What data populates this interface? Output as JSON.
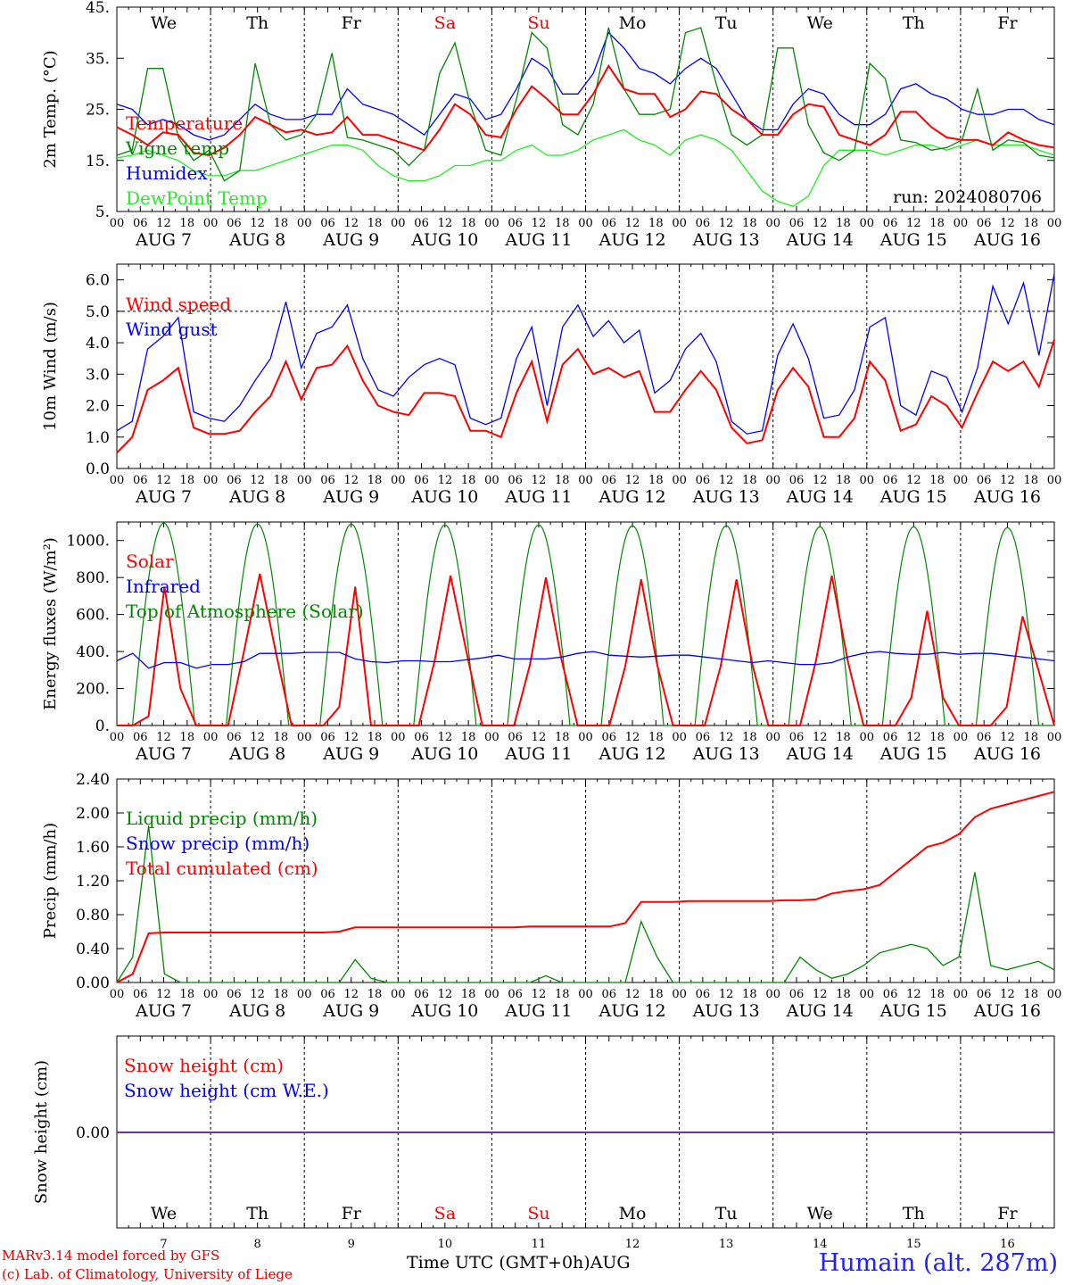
{
  "colors": {
    "red": "#ff0000",
    "green": "#008800",
    "blue": "#0000ff",
    "lightgreen": "#22ee22",
    "purple": "#7030a0",
    "weekend": "#ff0000",
    "station": "#2020ff"
  },
  "footer": {
    "credit1": "MARv3.14 model forced by GFS",
    "credit2": "(c) Lab. of Climatology, University of Liege",
    "xtitle": "Time UTC (GMT+0h)",
    "month": "AUG",
    "station": "Humain (alt. 287m)"
  },
  "chart_data": [
    {
      "type": "line",
      "ylabel": "2m Temp. (°C)",
      "ylim": [
        5,
        45
      ],
      "yticks": [
        "5.",
        "15.",
        "25.",
        "35.",
        "45."
      ],
      "annotation": "run: 2024080706",
      "days": [
        "We",
        "Th",
        "Fr",
        "Sa",
        "Su",
        "Mo",
        "Tu",
        "We",
        "Th",
        "Fr"
      ],
      "hour_labels": [
        "00",
        "06",
        "12",
        "18"
      ],
      "date_labels": [
        "AUG 7",
        "AUG 8",
        "AUG 9",
        "AUG 10",
        "AUG 11",
        "AUG 12",
        "AUG 13",
        "AUG 14",
        "AUG 15",
        "AUG 16"
      ],
      "series": [
        {
          "name": "Temperature",
          "color": "red",
          "values": [
            21.5,
            20,
            18,
            20.5,
            20,
            16.5,
            16,
            17.5,
            20,
            23.5,
            22,
            20.5,
            21,
            20,
            20.5,
            23.5,
            20,
            20,
            19,
            18,
            17,
            21,
            26,
            24,
            20,
            19.5,
            25,
            29.5,
            27,
            24,
            24,
            28,
            33.5,
            29,
            28,
            28,
            23.5,
            25,
            28.5,
            28,
            25,
            23,
            20,
            20,
            24,
            26,
            25.5,
            20,
            19,
            18,
            20,
            24.5,
            24.5,
            21.5,
            19.5,
            19,
            19,
            18,
            20.5,
            19,
            18,
            17.5
          ]
        },
        {
          "name": "Vigne temp",
          "color": "green",
          "values": [
            16,
            17,
            33,
            33,
            19.5,
            15,
            17,
            11,
            13,
            34,
            22,
            19,
            20,
            24,
            36,
            19.5,
            19,
            18,
            17,
            14,
            17,
            32,
            38,
            26,
            17,
            16,
            27,
            40,
            37,
            22,
            20,
            26,
            41,
            29,
            24,
            24,
            25,
            40,
            41,
            30,
            20,
            18,
            20,
            37,
            37,
            22,
            16.5,
            15,
            17,
            34,
            31,
            19,
            18.5,
            17,
            17.5,
            19,
            29,
            17,
            19,
            18.5,
            16,
            15.5
          ]
        },
        {
          "name": "Humidex",
          "color": "blue",
          "values": [
            26,
            25,
            22,
            23,
            22,
            20,
            19,
            20,
            23,
            26,
            24,
            23,
            23,
            24,
            24,
            29,
            26,
            25,
            24,
            22,
            20,
            24,
            28,
            27,
            23,
            24,
            29,
            35,
            33,
            28,
            28,
            32,
            40,
            37,
            33,
            32,
            30,
            33,
            35,
            33,
            28,
            23,
            21,
            21,
            26,
            29,
            28,
            24,
            22,
            22,
            24,
            29,
            30,
            28,
            27,
            25,
            24,
            24,
            25,
            25,
            23,
            22
          ]
        },
        {
          "name": "DewPoint Temp",
          "color": "lightgreen",
          "values": [
            15.5,
            16,
            17,
            16,
            15,
            13,
            12,
            12,
            13,
            13,
            14,
            15,
            16,
            17,
            18,
            18,
            17,
            14,
            12,
            11,
            11,
            12,
            14,
            14,
            15,
            15,
            17,
            18,
            16,
            16,
            17,
            19,
            20,
            21,
            19,
            18,
            16,
            19,
            20,
            19,
            17,
            13,
            9,
            7,
            6,
            8,
            14,
            17,
            17,
            17,
            16,
            17,
            18,
            18,
            17,
            18,
            19,
            18,
            18,
            18,
            17,
            16
          ]
        }
      ]
    },
    {
      "type": "line",
      "ylabel": "10m Wind (m/s)",
      "ylim": [
        0,
        6.5
      ],
      "yticks": [
        "0.0",
        "1.0",
        "2.0",
        "3.0",
        "4.0",
        "5.0",
        "6.0"
      ],
      "refline": 5.0,
      "hour_labels": [
        "00",
        "06",
        "12",
        "18"
      ],
      "date_labels": [
        "AUG 7",
        "AUG 8",
        "AUG 9",
        "AUG 10",
        "AUG 11",
        "AUG 12",
        "AUG 13",
        "AUG 14",
        "AUG 15",
        "AUG 16"
      ],
      "series": [
        {
          "name": "Wind speed",
          "color": "red",
          "values": [
            0.5,
            1,
            2.5,
            2.8,
            3.2,
            1.3,
            1.1,
            1.1,
            1.2,
            1.8,
            2.3,
            3.4,
            2.2,
            3.2,
            3.3,
            3.9,
            2.8,
            2,
            1.8,
            1.7,
            2.4,
            2.4,
            2.3,
            1.2,
            1.2,
            1,
            2.4,
            3.4,
            1.5,
            3.3,
            3.8,
            3,
            3.2,
            2.9,
            3.1,
            1.8,
            1.8,
            2.5,
            3.1,
            2.5,
            1.3,
            0.8,
            0.9,
            2.5,
            3.2,
            2.6,
            1,
            1,
            1.6,
            3.4,
            2.8,
            1.2,
            1.4,
            2.3,
            2,
            1.3,
            2.4,
            3.4,
            3.1,
            3.4,
            2.6,
            4.1
          ]
        },
        {
          "name": "Wind gust",
          "color": "blue",
          "values": [
            1.2,
            1.5,
            3.8,
            4.2,
            4.8,
            1.8,
            1.6,
            1.5,
            2,
            2.8,
            3.5,
            5.3,
            3.2,
            4.3,
            4.5,
            5.2,
            3.5,
            2.5,
            2.3,
            2.9,
            3.3,
            3.5,
            3.3,
            1.6,
            1.4,
            1.6,
            3.5,
            4.5,
            2,
            4.5,
            5.2,
            4.2,
            4.7,
            4,
            4.4,
            2.4,
            2.8,
            3.8,
            4.3,
            3.4,
            1.5,
            1.1,
            1.2,
            3.6,
            4.6,
            3.5,
            1.6,
            1.7,
            2.5,
            4.5,
            4.8,
            2,
            1.7,
            3.1,
            2.9,
            1.8,
            3.2,
            5.8,
            4.6,
            5.9,
            3.6,
            6.2
          ]
        }
      ]
    },
    {
      "type": "line",
      "ylabel": "Energy fluxes (W/m²)",
      "ylim": [
        0,
        1100
      ],
      "yticks": [
        "0.",
        "200.",
        "400.",
        "600.",
        "800.",
        "1000."
      ],
      "hour_labels": [
        "00",
        "06",
        "12",
        "18"
      ],
      "date_labels": [
        "AUG 7",
        "AUG 8",
        "AUG 9",
        "AUG 10",
        "AUG 11",
        "AUG 12",
        "AUG 13",
        "AUG 14",
        "AUG 15",
        "AUG 16"
      ],
      "series": [
        {
          "name": "Solar",
          "color": "red",
          "values": [
            0,
            0,
            50,
            750,
            200,
            0,
            0,
            0,
            400,
            820,
            400,
            0,
            0,
            0,
            100,
            750,
            0,
            0,
            0,
            0,
            350,
            810,
            400,
            0,
            0,
            0,
            330,
            800,
            350,
            0,
            0,
            0,
            320,
            790,
            330,
            0,
            0,
            0,
            320,
            790,
            330,
            0,
            0,
            0,
            350,
            810,
            350,
            0,
            0,
            0,
            150,
            620,
            150,
            0,
            0,
            0,
            100,
            590,
            300,
            0
          ]
        },
        {
          "name": "Infrared",
          "color": "blue",
          "values": [
            350,
            390,
            310,
            340,
            340,
            310,
            330,
            330,
            345,
            390,
            390,
            390,
            395,
            395,
            395,
            360,
            345,
            340,
            350,
            350,
            345,
            345,
            355,
            365,
            380,
            360,
            360,
            360,
            370,
            390,
            400,
            380,
            375,
            370,
            375,
            380,
            380,
            370,
            360,
            350,
            340,
            350,
            340,
            330,
            330,
            340,
            370,
            390,
            400,
            390,
            385,
            385,
            395,
            385,
            390,
            390,
            380,
            370,
            360,
            350
          ]
        },
        {
          "name": "Top of Atmosphere (Solar)",
          "color": "green",
          "values": [
            1095,
            1090,
            1090,
            1085,
            1085,
            1080,
            1080,
            1075,
            1075,
            1070
          ]
        }
      ]
    },
    {
      "type": "line",
      "ylabel": "Precip (mm/h)",
      "ylim": [
        0,
        2.4
      ],
      "yticks": [
        "0.00",
        "0.40",
        "0.80",
        "1.20",
        "1.60",
        "2.00",
        "2.40"
      ],
      "hour_labels": [
        "00",
        "06",
        "12",
        "18"
      ],
      "date_labels": [
        "AUG 7",
        "AUG 8",
        "AUG 9",
        "AUG 10",
        "AUG 11",
        "AUG 12",
        "AUG 13",
        "AUG 14",
        "AUG 15",
        "AUG 16"
      ],
      "series": [
        {
          "name": "Liquid precip (mm/h)",
          "color": "green",
          "values": [
            0,
            0.3,
            1.85,
            0.1,
            0,
            0,
            0,
            0,
            0,
            0,
            0,
            0,
            0,
            0,
            0,
            0.27,
            0.05,
            0,
            0,
            0,
            0,
            0,
            0,
            0,
            0,
            0,
            0,
            0.08,
            0,
            0,
            0,
            0,
            0,
            0.72,
            0.3,
            0,
            0,
            0,
            0,
            0,
            0,
            0,
            0,
            0.3,
            0.15,
            0.05,
            0.1,
            0.2,
            0.35,
            0.4,
            0.45,
            0.4,
            0.2,
            0.3,
            1.3,
            0.2,
            0.15,
            0.2,
            0.25,
            0.15
          ]
        },
        {
          "name": "Snow precip (mm/h)",
          "color": "blue",
          "values": []
        },
        {
          "name": "Total cumulated (cm)",
          "color": "red",
          "values": [
            0,
            0.1,
            0.58,
            0.59,
            0.59,
            0.59,
            0.59,
            0.59,
            0.59,
            0.59,
            0.59,
            0.59,
            0.59,
            0.59,
            0.6,
            0.65,
            0.65,
            0.65,
            0.65,
            0.65,
            0.65,
            0.65,
            0.65,
            0.65,
            0.65,
            0.65,
            0.66,
            0.66,
            0.66,
            0.66,
            0.66,
            0.66,
            0.7,
            0.95,
            0.95,
            0.95,
            0.96,
            0.96,
            0.96,
            0.96,
            0.96,
            0.96,
            0.97,
            0.97,
            0.98,
            1.05,
            1.08,
            1.1,
            1.15,
            1.3,
            1.45,
            1.6,
            1.65,
            1.75,
            1.95,
            2.05,
            2.1,
            2.15,
            2.2,
            2.25
          ]
        }
      ]
    },
    {
      "type": "line",
      "ylabel": "Snow height (cm)",
      "yticks": [
        "0.00"
      ],
      "day_labels_bottom": [
        "We",
        "Th",
        "Fr",
        "Sa",
        "Su",
        "Mo",
        "Tu",
        "We",
        "Th",
        "Fr"
      ],
      "date_numbers": [
        "7",
        "8",
        "9",
        "10",
        "11",
        "12",
        "13",
        "14",
        "15",
        "16"
      ],
      "series": [
        {
          "name": "Snow height (cm)",
          "color": "red",
          "values": [
            0,
            0
          ]
        },
        {
          "name": "Snow height (cm W.E.)",
          "color": "blue",
          "values": [
            0,
            0
          ]
        }
      ]
    }
  ]
}
